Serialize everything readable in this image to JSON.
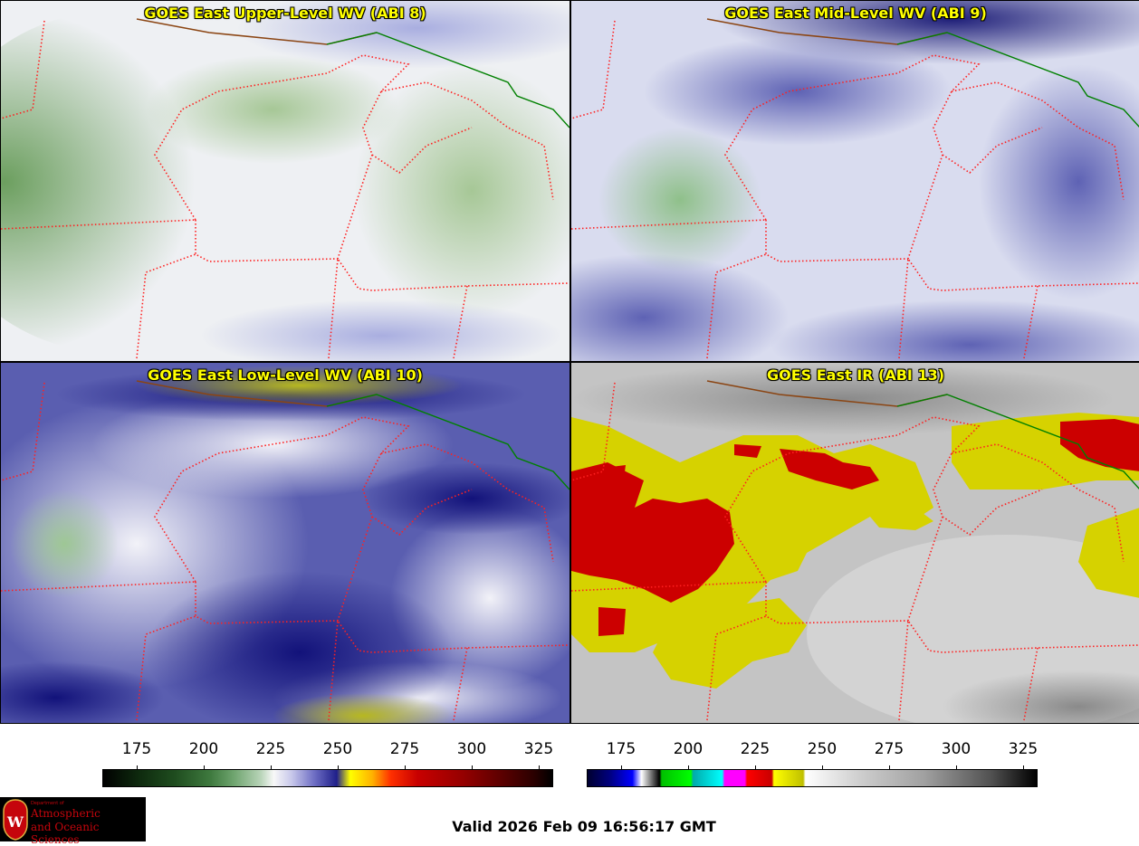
{
  "panels": [
    {
      "title": "GOES East Upper-Level WV (ABI 8)"
    },
    {
      "title": "GOES East Mid-Level WV (ABI 9)"
    },
    {
      "title": "GOES East Low-Level WV (ABI 10)"
    },
    {
      "title": "GOES East IR (ABI 13)"
    }
  ],
  "colorbars": [
    {
      "name": "water-vapor-scale",
      "ticks": [
        "175",
        "200",
        "225",
        "250",
        "275",
        "300",
        "325"
      ]
    },
    {
      "name": "infrared-scale",
      "ticks": [
        "175",
        "200",
        "225",
        "250",
        "275",
        "300",
        "325"
      ]
    }
  ],
  "valid": "Valid 2026 Feb 09 16:56:17 GMT",
  "logo": {
    "dept": "Department of",
    "line1": "Atmospheric",
    "line2": "and Oceanic Sciences",
    "seal_letter": "W"
  },
  "colors": {
    "title_text": "#ffff00",
    "state_border": "#ff2020",
    "coast_line": "#8b4513",
    "country_border": "#008000"
  }
}
